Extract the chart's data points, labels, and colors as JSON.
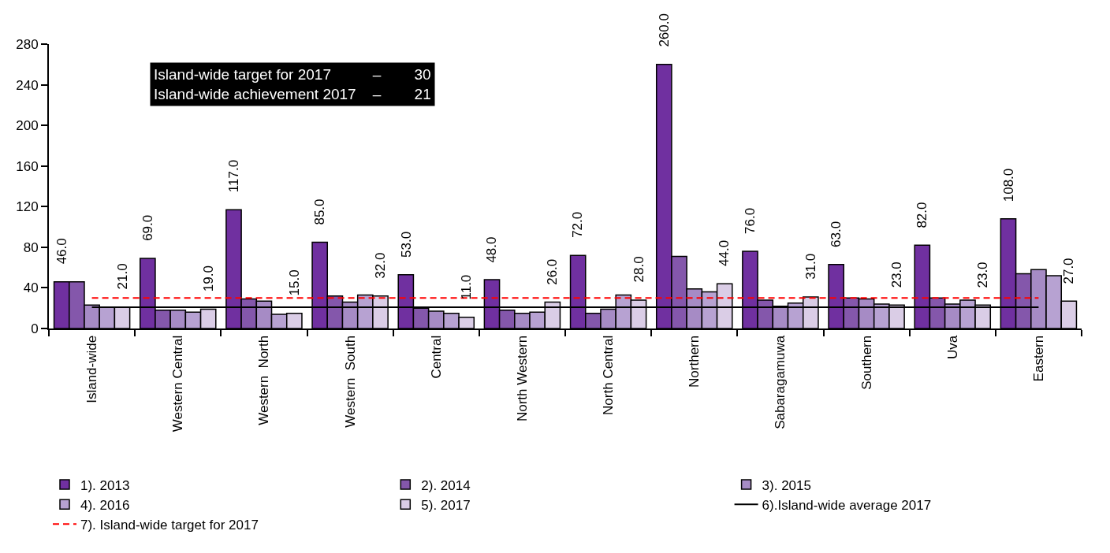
{
  "chart_data": {
    "type": "bar",
    "categories": [
      "Island-wide",
      "Western Central",
      "Western  North",
      "Western  South",
      "Central",
      "North Western",
      "North Central",
      "Northern",
      "Sabaragamuwa",
      "Southern",
      "Uva",
      "Eastern"
    ],
    "series": [
      {
        "name": "1). 2013",
        "color": "#7030a0",
        "values": [
          46,
          69,
          117,
          85,
          53,
          48,
          72,
          260,
          76,
          63,
          82,
          108
        ],
        "value_labels": [
          "46.0",
          "69.0",
          "117.0",
          "85.0",
          "53.0",
          "48.0",
          "72.0",
          "260.0",
          "76.0",
          "63.0",
          "82.0",
          "108.0"
        ]
      },
      {
        "name": "2). 2014",
        "color": "#8457ab",
        "values": [
          46,
          18,
          29,
          32,
          20,
          18,
          15,
          71,
          28,
          30,
          30,
          54
        ]
      },
      {
        "name": "3). 2015",
        "color": "#a68bc5",
        "values": [
          23,
          18,
          27,
          26,
          17,
          15,
          19,
          39,
          22,
          29,
          24,
          58
        ]
      },
      {
        "name": "4). 2016",
        "color": "#b7a2d2",
        "values": [
          21,
          16,
          14,
          33,
          15,
          16,
          33,
          36,
          25,
          24,
          28,
          52
        ]
      },
      {
        "name": "5). 2017",
        "color": "#dacde6",
        "values": [
          21,
          19,
          15,
          32,
          11,
          26,
          28,
          44,
          31,
          23,
          23,
          27
        ],
        "value_labels": [
          "21.0",
          "19.0",
          "15.0",
          "32.0",
          "11.0",
          "26.0",
          "28.0",
          "44.0",
          "31.0",
          "23.0",
          "23.0",
          "27.0"
        ]
      },
      {
        "name": "6).Island-wide average 2017",
        "type": "line",
        "color": "#000000",
        "line_style": "solid",
        "values": [
          21,
          21,
          21,
          21,
          21,
          21,
          21,
          21,
          21,
          21,
          21,
          21
        ]
      },
      {
        "name": "7). Island-wide target for 2017",
        "type": "line",
        "color": "#ff0000",
        "line_style": "dashed",
        "values": [
          30,
          30,
          30,
          30,
          30,
          30,
          30,
          30,
          30,
          30,
          30,
          30
        ]
      }
    ],
    "ylim": [
      0,
      280
    ],
    "yticks": [
      0,
      40,
      80,
      120,
      160,
      200,
      240,
      280
    ],
    "legend": "bottom",
    "marker": "none",
    "annotations": [
      "Island-wide target for 2017          –        30",
      "Island-wide achievement 2017    –        21"
    ]
  }
}
